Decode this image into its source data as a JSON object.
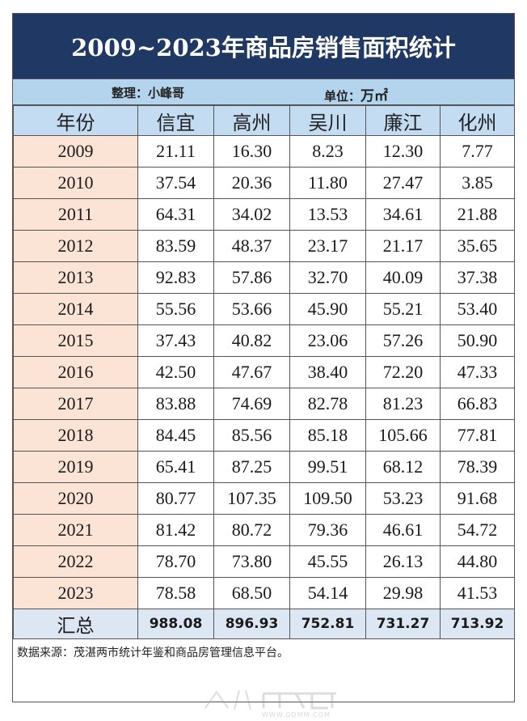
{
  "title": "2009~2023年商品房销售面积统计",
  "info": {
    "compiler": "整理：小峰哥",
    "unit_label": "单位：",
    "unit_value": "万㎡"
  },
  "table": {
    "columns": [
      "年份",
      "信宜",
      "高州",
      "吴川",
      "廉江",
      "化州"
    ],
    "rows": [
      {
        "year": "2009",
        "values": [
          "21.11",
          "16.30",
          "8.23",
          "12.30",
          "7.77"
        ]
      },
      {
        "year": "2010",
        "values": [
          "37.54",
          "20.36",
          "11.80",
          "27.47",
          "3.85"
        ]
      },
      {
        "year": "2011",
        "values": [
          "64.31",
          "34.02",
          "13.53",
          "34.61",
          "21.88"
        ]
      },
      {
        "year": "2012",
        "values": [
          "83.59",
          "48.37",
          "23.17",
          "21.17",
          "35.65"
        ]
      },
      {
        "year": "2013",
        "values": [
          "92.83",
          "57.86",
          "32.70",
          "40.09",
          "37.38"
        ]
      },
      {
        "year": "2014",
        "values": [
          "55.56",
          "53.66",
          "45.90",
          "55.21",
          "53.40"
        ]
      },
      {
        "year": "2015",
        "values": [
          "37.43",
          "40.82",
          "23.06",
          "57.26",
          "50.90"
        ]
      },
      {
        "year": "2016",
        "values": [
          "42.50",
          "47.67",
          "38.40",
          "72.20",
          "47.33"
        ]
      },
      {
        "year": "2017",
        "values": [
          "83.88",
          "74.69",
          "82.78",
          "81.23",
          "66.83"
        ]
      },
      {
        "year": "2018",
        "values": [
          "84.45",
          "85.56",
          "85.18",
          "105.66",
          "77.81"
        ]
      },
      {
        "year": "2019",
        "values": [
          "65.41",
          "87.25",
          "99.51",
          "68.12",
          "78.39"
        ]
      },
      {
        "year": "2020",
        "values": [
          "80.77",
          "107.35",
          "109.50",
          "53.23",
          "91.68"
        ]
      },
      {
        "year": "2021",
        "values": [
          "81.42",
          "80.72",
          "79.36",
          "46.61",
          "54.72"
        ]
      },
      {
        "year": "2022",
        "values": [
          "78.70",
          "73.80",
          "45.55",
          "26.13",
          "44.80"
        ]
      },
      {
        "year": "2023",
        "values": [
          "78.58",
          "68.50",
          "54.14",
          "29.98",
          "41.53"
        ]
      }
    ],
    "total": {
      "label": "汇总",
      "values": [
        "988.08",
        "896.93",
        "752.81",
        "731.27",
        "713.92"
      ]
    }
  },
  "source": "数据来源：茂湛两市统计年鉴和商品房管理信息平台。",
  "watermark": {
    "logo_text": "茂名在线",
    "url": "WWW.GDMM.COM"
  },
  "colors": {
    "title_bg": "#1f3864",
    "info_bg": "#b4d4ee",
    "header_bg": "#c4dcf2",
    "year_bg": "#fbe3d6",
    "total_bg": "#dde6f3"
  }
}
